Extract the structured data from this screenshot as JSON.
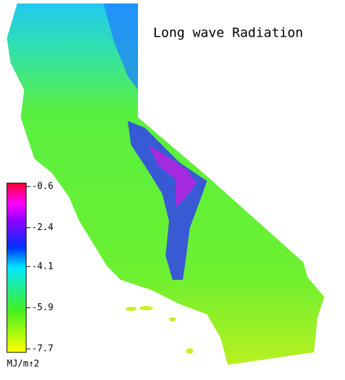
{
  "title": "Long wave Radiation",
  "colorbar": {
    "lim": [
      -7.7,
      -0.6
    ],
    "ticks": [
      -0.6,
      -2.4,
      -4.1,
      -5.9,
      -7.7
    ],
    "unit": "MJ/m↑2"
  }
}
